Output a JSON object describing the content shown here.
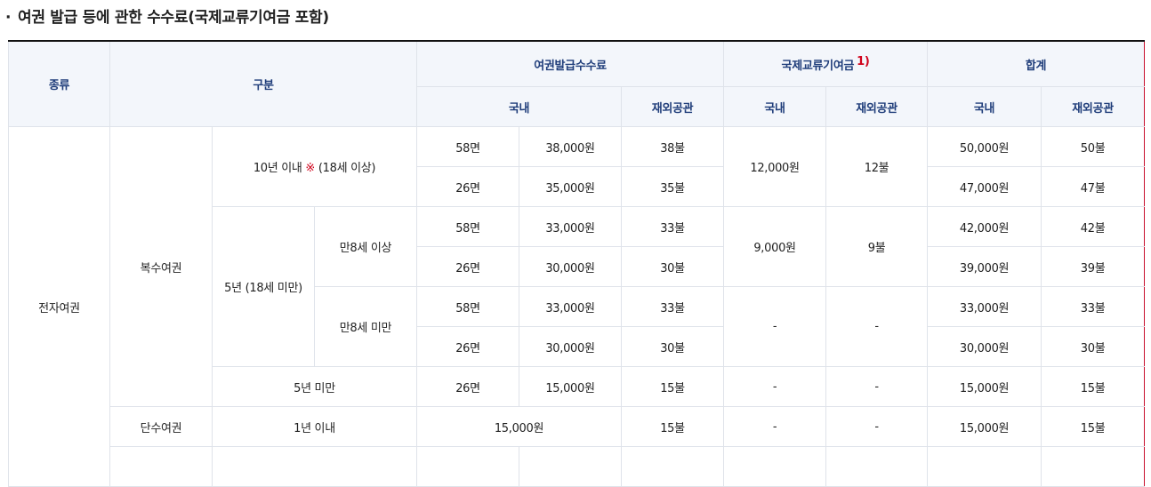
{
  "title": {
    "bullet": "·",
    "text": "여권 발급 등에 관한 수수료(국제교류기여금 포함)"
  },
  "header": {
    "type": "종류",
    "category": "구분",
    "issue_fee": "여권발급수수료",
    "intl_fee": "국제교류기여금",
    "intl_fee_note": "1)",
    "total": "합계",
    "domestic": "국내",
    "overseas": "재외공관"
  },
  "passport": {
    "electronic": "전자여권",
    "multiple": "복수여권",
    "single": "단수여권",
    "ten_year": "10년 이내",
    "ten_year_mark": "※",
    "ten_year_note": "(18세 이상)",
    "five_year": "5년 (18세 미만)",
    "age8_over": "만8세 이상",
    "age8_under": "만8세 미만",
    "under_five": "5년 미만",
    "within_one": "1년 이내"
  },
  "rows": [
    {
      "pages": "58면",
      "domestic": "38,000원",
      "overseas": "38불",
      "total_dom": "50,000원",
      "total_ovs": "50불"
    },
    {
      "pages": "26면",
      "domestic": "35,000원",
      "overseas": "35불",
      "total_dom": "47,000원",
      "total_ovs": "47불"
    },
    {
      "pages": "58면",
      "domestic": "33,000원",
      "overseas": "33불",
      "total_dom": "42,000원",
      "total_ovs": "42불"
    },
    {
      "pages": "26면",
      "domestic": "30,000원",
      "overseas": "30불",
      "total_dom": "39,000원",
      "total_ovs": "39불"
    },
    {
      "pages": "58면",
      "domestic": "33,000원",
      "overseas": "33불",
      "total_dom": "33,000원",
      "total_ovs": "33불"
    },
    {
      "pages": "26면",
      "domestic": "30,000원",
      "overseas": "30불",
      "total_dom": "30,000원",
      "total_ovs": "30불"
    },
    {
      "pages": "26면",
      "domestic": "15,000원",
      "overseas": "15불",
      "total_dom": "15,000원",
      "total_ovs": "15불"
    },
    {
      "domestic": "15,000원",
      "overseas": "15불",
      "total_dom": "15,000원",
      "total_ovs": "15불"
    }
  ],
  "intl": {
    "ten_dom": "12,000원",
    "ten_ovs": "12불",
    "age8_over_dom": "9,000원",
    "age8_over_ovs": "9불",
    "dash": "-"
  },
  "colors": {
    "header_bg": "#f3f6fb",
    "header_text": "#1f3d7a",
    "highlight_border": "#c8102e",
    "note_red": "#d0021b"
  }
}
